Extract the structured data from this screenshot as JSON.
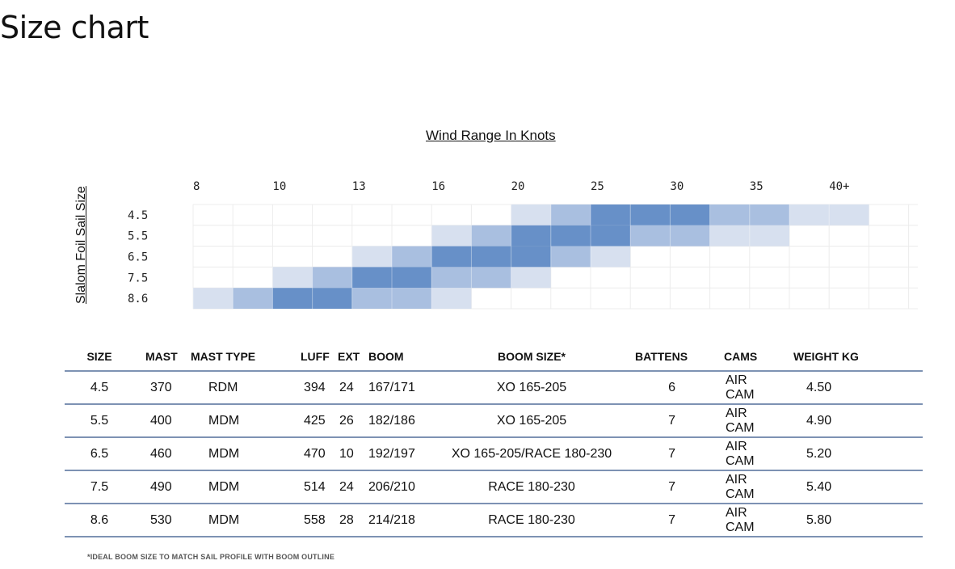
{
  "page": {
    "title": "Size chart"
  },
  "chart_data": {
    "type": "heatmap",
    "title": "Wind Range In Knots",
    "ylabel": "Slalom Foil Sail Size",
    "x_ticks": [
      "8",
      "10",
      "13",
      "16",
      "20",
      "25",
      "30",
      "35",
      "40+"
    ],
    "rows": [
      "4.5",
      "5.5",
      "6.5",
      "7.5",
      "8.6"
    ],
    "num_columns": 18,
    "levels": {
      "0": "#ffffff",
      "1": "#d7e0ef",
      "2": "#a9bfe0",
      "3": "#6790c8"
    },
    "values": [
      [
        0,
        0,
        0,
        0,
        0,
        0,
        0,
        0,
        1,
        2,
        3,
        3,
        3,
        2,
        2,
        1,
        1,
        0
      ],
      [
        0,
        0,
        0,
        0,
        0,
        0,
        1,
        2,
        3,
        3,
        3,
        2,
        2,
        1,
        1,
        0,
        0,
        0
      ],
      [
        0,
        0,
        0,
        0,
        1,
        2,
        3,
        3,
        3,
        2,
        1,
        0,
        0,
        0,
        0,
        0,
        0,
        0
      ],
      [
        0,
        0,
        1,
        2,
        3,
        3,
        2,
        2,
        1,
        0,
        0,
        0,
        0,
        0,
        0,
        0,
        0,
        0
      ],
      [
        1,
        2,
        3,
        3,
        2,
        2,
        1,
        0,
        0,
        0,
        0,
        0,
        0,
        0,
        0,
        0,
        0,
        0
      ]
    ]
  },
  "table": {
    "headers": [
      "SIZE",
      "MAST",
      "MAST TYPE",
      "LUFF",
      "EXT",
      "BOOM",
      "BOOM SIZE*",
      "BATTENS",
      "CAMS",
      "WEIGHT KG"
    ],
    "rows": [
      [
        "4.5",
        "370",
        "RDM",
        "394",
        "24",
        "167/171",
        "XO 165-205",
        "6",
        "AIR CAM",
        "4.50"
      ],
      [
        "5.5",
        "400",
        "MDM",
        "425",
        "26",
        "182/186",
        "XO 165-205",
        "7",
        "AIR CAM",
        "4.90"
      ],
      [
        "6.5",
        "460",
        "MDM",
        "470",
        "10",
        "192/197",
        "XO 165-205/RACE 180-230",
        "7",
        "AIR CAM",
        "5.20"
      ],
      [
        "7.5",
        "490",
        "MDM",
        "514",
        "24",
        "206/210",
        "RACE 180-230",
        "7",
        "AIR CAM",
        "5.40"
      ],
      [
        "8.6",
        "530",
        "MDM",
        "558",
        "28",
        "214/218",
        "RACE 180-230",
        "7",
        "AIR CAM",
        "5.80"
      ]
    ]
  },
  "footnote": "*IDEAL BOOM SIZE TO MATCH SAIL PROFILE WITH BOOM OUTLINE"
}
